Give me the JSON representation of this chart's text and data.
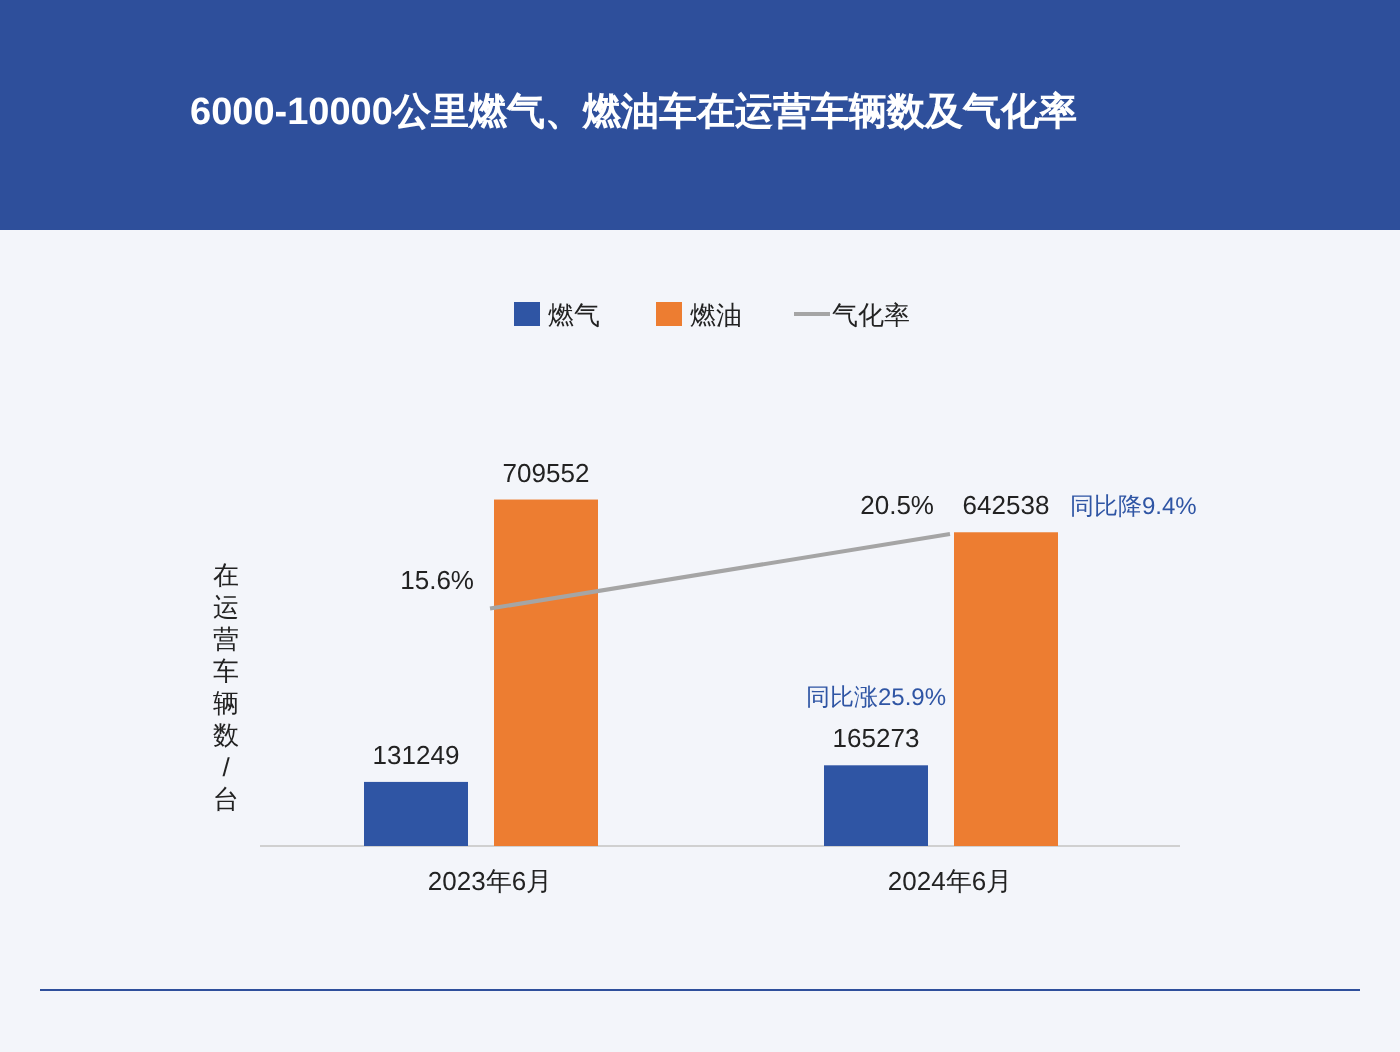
{
  "chart_data": {
    "type": "bar",
    "title": "6000-10000公里燃气、燃油车在运营车辆数及气化率",
    "ylabel": "在运营车辆数/台",
    "categories": [
      "2023年6月",
      "2024年6月"
    ],
    "series": [
      {
        "name": "燃气",
        "color": "#2f55a4",
        "values": [
          131249,
          165273
        ]
      },
      {
        "name": "燃油",
        "color": "#ed7d31",
        "values": [
          709552,
          642538
        ]
      },
      {
        "name": "气化率",
        "type": "line",
        "axis": "y2",
        "color": "#a5a5a5",
        "values": [
          15.6,
          20.5
        ],
        "value_labels": [
          "15.6%",
          "20.5%"
        ]
      }
    ],
    "tick_labels": "x",
    "data_labels": true,
    "legend": "top",
    "annotations": [
      "同比降9.4%",
      "同比涨25.9%"
    ]
  }
}
